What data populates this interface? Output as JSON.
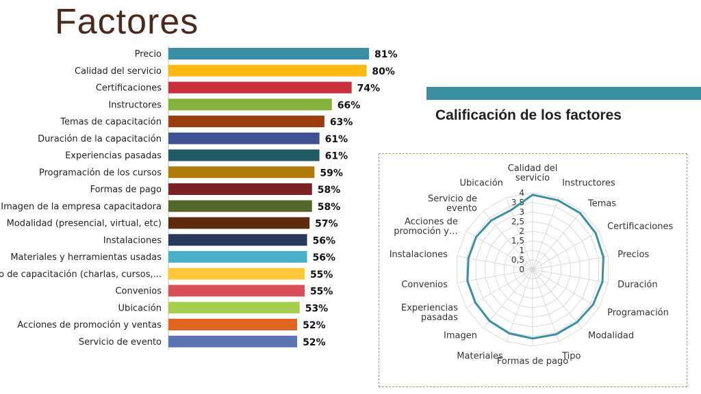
{
  "slide": {
    "title": "Factores",
    "accent_color": "#3b8fa3"
  },
  "chart_data": [
    {
      "type": "bar",
      "orientation": "horizontal",
      "categories": [
        "Precio",
        "Calidad del servicio",
        "Certificaciones",
        "Instructores",
        "Temas de capacitación",
        "Duración de la capacitación",
        "Experiencias pasadas",
        "Programación de los cursos",
        "Formas de pago",
        "Imagen de la empresa capacitadora",
        "Modalidad (presencial, virtual,  etc)",
        "Instalaciones",
        "Materiales y herramientas usadas",
        "Tipo de capacitación (charlas, cursos,...",
        "Convenios",
        "Ubicación",
        "Acciones de promoción y ventas",
        "Servicio de evento"
      ],
      "values": [
        81,
        80,
        74,
        66,
        63,
        61,
        61,
        59,
        58,
        58,
        57,
        56,
        56,
        55,
        55,
        53,
        52,
        52
      ],
      "value_labels": [
        "81%",
        "80%",
        "74%",
        "66%",
        "63%",
        "61%",
        "61%",
        "59%",
        "58%",
        "58%",
        "57%",
        "56%",
        "56%",
        "55%",
        "55%",
        "53%",
        "52%",
        "52%"
      ],
      "colors": [
        "#3a8fa5",
        "#fdb913",
        "#c8323a",
        "#86b23c",
        "#9b3f10",
        "#3f5393",
        "#215a63",
        "#b07c10",
        "#7a2224",
        "#53682a",
        "#5c2b0c",
        "#2a3a5f",
        "#4ab0c8",
        "#fdc83b",
        "#d84f55",
        "#a6cd4f",
        "#e2651f",
        "#5c74b3"
      ],
      "xlim": [
        0,
        100
      ]
    },
    {
      "type": "radar",
      "title": "Calificación de los factores",
      "categories": [
        "Calidad del servicio",
        "Instructores",
        "Temas",
        "Certificaciones",
        "Precios",
        "Duración",
        "Programación",
        "Modalidad",
        "Tipo",
        "Formas de pago",
        "Materiales",
        "Imagen",
        "Experiencias pasadas",
        "Convenios",
        "Instalaciones",
        "Acciones de promoción y…",
        "Servicio de evento",
        "Ubicación"
      ],
      "values": [
        3.9,
        3.85,
        3.85,
        3.8,
        3.75,
        3.7,
        3.65,
        3.6,
        3.6,
        3.6,
        3.55,
        3.5,
        3.45,
        3.45,
        3.4,
        3.4,
        3.35,
        3.3
      ],
      "ticks": [
        "0",
        "0,5",
        "1",
        "1,5",
        "2",
        "2,5",
        "3",
        "3,5",
        "4"
      ],
      "rlim": [
        0,
        4
      ],
      "line_color": "#3b8fa3",
      "grid_color": "#d9d9d9",
      "grid": true
    }
  ]
}
